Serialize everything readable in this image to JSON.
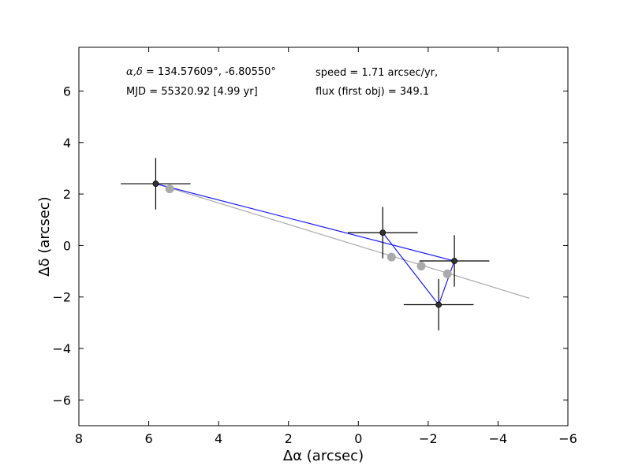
{
  "chart_data": {
    "type": "scatter",
    "xlabel": "Δα (arcsec)",
    "ylabel": "Δδ (arcsec)",
    "xlim": [
      8,
      -6
    ],
    "ylim": [
      -7,
      7.7
    ],
    "x_ticks": [
      8,
      6,
      4,
      2,
      0,
      -2,
      -4,
      -6
    ],
    "y_ticks": [
      6,
      4,
      2,
      0,
      -2,
      -4,
      -6
    ],
    "x_tick_labels": [
      "8",
      "6",
      "4",
      "2",
      "0",
      "−2",
      "−4",
      "−6"
    ],
    "y_tick_labels": [
      "6",
      "4",
      "2",
      "0",
      "−2",
      "−4",
      "−6"
    ],
    "grid": false,
    "annotations": {
      "coords_symbol": "α,δ",
      "coords_value": " = 134.57609°, -6.80550°",
      "mjd": "MJD = 55320.92 [4.99 yr]",
      "speed": "speed = 1.71 arcsec/yr,",
      "flux": "flux (first obj) = 349.1"
    },
    "series": [
      {
        "role": "observed",
        "color": "#1a1aff",
        "marker_color": "#333333",
        "points": [
          {
            "x": 5.8,
            "y": 2.4,
            "xerr": 1.0,
            "yerr": 1.0
          },
          {
            "x": -0.7,
            "y": 0.5,
            "xerr": 1.0,
            "yerr": 1.0
          },
          {
            "x": -2.75,
            "y": -0.6,
            "xerr": 1.0,
            "yerr": 1.0
          },
          {
            "x": -2.3,
            "y": -2.3,
            "xerr": 1.0,
            "yerr": 1.0
          }
        ],
        "path_order": [
          0,
          2,
          3,
          1
        ]
      },
      {
        "role": "model",
        "color": "#aaaaaa",
        "points": [
          {
            "x": 5.4,
            "y": 2.2
          },
          {
            "x": -0.95,
            "y": -0.45
          },
          {
            "x": -1.8,
            "y": -0.8
          },
          {
            "x": -2.55,
            "y": -1.1
          }
        ],
        "fit_line": {
          "x": [
            5.8,
            -4.9
          ],
          "y": [
            2.4,
            -2.05
          ]
        }
      }
    ]
  }
}
